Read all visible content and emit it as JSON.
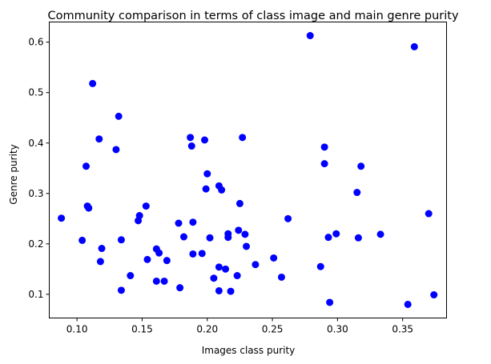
{
  "chart_data": {
    "type": "scatter",
    "title": "Community comparison in terms of class image and main genre purity",
    "xlabel": "Images class purity",
    "ylabel": "Genre purity",
    "xlim": [
      0.0787,
      0.3837
    ],
    "ylim": [
      0.053,
      0.64
    ],
    "xticks": [
      0.1,
      0.15,
      0.2,
      0.25,
      0.3,
      0.35
    ],
    "xtick_labels": [
      "0.10",
      "0.15",
      "0.20",
      "0.25",
      "0.30",
      "0.35"
    ],
    "yticks": [
      0.1,
      0.2,
      0.3,
      0.4,
      0.5,
      0.6
    ],
    "ytick_labels": [
      "0.1",
      "0.2",
      "0.3",
      "0.4",
      "0.5",
      "0.6"
    ],
    "grid": false,
    "marker_color": "#0000ff",
    "series": [
      {
        "points": [
          [
            0.088,
            0.251
          ],
          [
            0.104,
            0.207
          ],
          [
            0.107,
            0.354
          ],
          [
            0.108,
            0.275
          ],
          [
            0.109,
            0.271
          ],
          [
            0.112,
            0.518
          ],
          [
            0.117,
            0.408
          ],
          [
            0.118,
            0.165
          ],
          [
            0.119,
            0.191
          ],
          [
            0.13,
            0.387
          ],
          [
            0.132,
            0.453
          ],
          [
            0.134,
            0.208
          ],
          [
            0.134,
            0.108
          ],
          [
            0.141,
            0.137
          ],
          [
            0.147,
            0.246
          ],
          [
            0.148,
            0.256
          ],
          [
            0.153,
            0.275
          ],
          [
            0.154,
            0.169
          ],
          [
            0.161,
            0.19
          ],
          [
            0.161,
            0.126
          ],
          [
            0.163,
            0.182
          ],
          [
            0.167,
            0.126
          ],
          [
            0.169,
            0.167
          ],
          [
            0.178,
            0.241
          ],
          [
            0.179,
            0.113
          ],
          [
            0.182,
            0.214
          ],
          [
            0.187,
            0.411
          ],
          [
            0.188,
            0.394
          ],
          [
            0.189,
            0.18
          ],
          [
            0.189,
            0.243
          ],
          [
            0.196,
            0.181
          ],
          [
            0.198,
            0.406
          ],
          [
            0.199,
            0.309
          ],
          [
            0.2,
            0.339
          ],
          [
            0.202,
            0.212
          ],
          [
            0.205,
            0.132
          ],
          [
            0.209,
            0.315
          ],
          [
            0.209,
            0.154
          ],
          [
            0.209,
            0.107
          ],
          [
            0.211,
            0.307
          ],
          [
            0.214,
            0.15
          ],
          [
            0.216,
            0.22
          ],
          [
            0.216,
            0.213
          ],
          [
            0.218,
            0.106
          ],
          [
            0.223,
            0.137
          ],
          [
            0.224,
            0.227
          ],
          [
            0.225,
            0.28
          ],
          [
            0.227,
            0.411
          ],
          [
            0.229,
            0.219
          ],
          [
            0.23,
            0.195
          ],
          [
            0.237,
            0.159
          ],
          [
            0.251,
            0.172
          ],
          [
            0.257,
            0.134
          ],
          [
            0.262,
            0.25
          ],
          [
            0.279,
            0.613
          ],
          [
            0.287,
            0.155
          ],
          [
            0.29,
            0.392
          ],
          [
            0.29,
            0.359
          ],
          [
            0.293,
            0.213
          ],
          [
            0.294,
            0.084
          ],
          [
            0.299,
            0.22
          ],
          [
            0.315,
            0.302
          ],
          [
            0.316,
            0.212
          ],
          [
            0.318,
            0.354
          ],
          [
            0.333,
            0.219
          ],
          [
            0.354,
            0.08
          ],
          [
            0.359,
            0.591
          ],
          [
            0.37,
            0.26
          ],
          [
            0.374,
            0.099
          ]
        ]
      }
    ]
  }
}
